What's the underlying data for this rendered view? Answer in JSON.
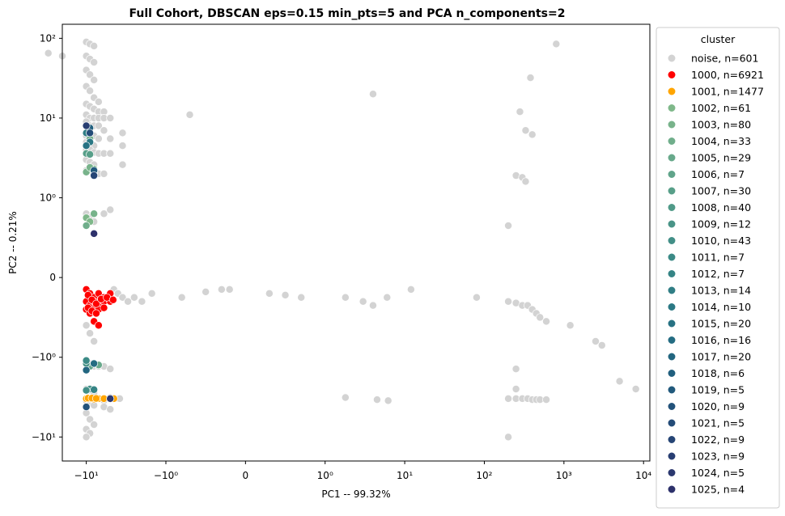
{
  "chart_data": {
    "type": "scatter",
    "title": "Full Cohort, DBSCAN eps=0.15 min_pts=5 and PCA n_components=2",
    "xlabel": "PC1 -- 99.32%",
    "ylabel": "PC2 -- 0.21%",
    "xscale": "symlog",
    "yscale": "symlog",
    "xlim": [
      -20,
      12000
    ],
    "ylim": [
      -20,
      150
    ],
    "x_ticks": [
      {
        "value": -10,
        "label": "−10¹"
      },
      {
        "value": -1,
        "label": "−10⁰"
      },
      {
        "value": 0,
        "label": "0"
      },
      {
        "value": 1,
        "label": "10⁰"
      },
      {
        "value": 10,
        "label": "10¹"
      },
      {
        "value": 100,
        "label": "10²"
      },
      {
        "value": 1000,
        "label": "10³"
      },
      {
        "value": 10000,
        "label": "10⁴"
      }
    ],
    "y_ticks": [
      {
        "value": 100,
        "label": "10²"
      },
      {
        "value": 10,
        "label": "10¹"
      },
      {
        "value": 1,
        "label": "10⁰"
      },
      {
        "value": 0,
        "label": "0"
      },
      {
        "value": -1,
        "label": "−10⁰"
      },
      {
        "value": -10,
        "label": "−10¹"
      }
    ],
    "legend": {
      "title": "cluster",
      "placement": "outside-right",
      "entries": [
        {
          "label": "noise, n=601",
          "color": "#d3d3d3"
        },
        {
          "label": "1000, n=6921",
          "color": "#ff0000"
        },
        {
          "label": "1001, n=1477",
          "color": "#ffa500"
        },
        {
          "label": "1002, n=61",
          "color": "#7fb88a"
        },
        {
          "label": "1003, n=80",
          "color": "#78b38b"
        },
        {
          "label": "1004, n=33",
          "color": "#70ae8b"
        },
        {
          "label": "1005, n=29",
          "color": "#68a98b"
        },
        {
          "label": "1006, n=7",
          "color": "#60a48a"
        },
        {
          "label": "1007, n=30",
          "color": "#589f89"
        },
        {
          "label": "1008, n=40",
          "color": "#509a88"
        },
        {
          "label": "1009, n=12",
          "color": "#499487"
        },
        {
          "label": "1010, n=43",
          "color": "#428f87"
        },
        {
          "label": "1011, n=7",
          "color": "#3b8a86"
        },
        {
          "label": "1012, n=7",
          "color": "#358485"
        },
        {
          "label": "1013, n=14",
          "color": "#307e85"
        },
        {
          "label": "1014, n=10",
          "color": "#2b7884"
        },
        {
          "label": "1015, n=20",
          "color": "#277283"
        },
        {
          "label": "1016, n=16",
          "color": "#246c82"
        },
        {
          "label": "1017, n=20",
          "color": "#226680"
        },
        {
          "label": "1018, n=6",
          "color": "#215f7e"
        },
        {
          "label": "1019, n=5",
          "color": "#21597c"
        },
        {
          "label": "1020, n=9",
          "color": "#22527a"
        },
        {
          "label": "1021, n=5",
          "color": "#244c78"
        },
        {
          "label": "1022, n=9",
          "color": "#264575"
        },
        {
          "label": "1023, n=9",
          "color": "#283e72"
        },
        {
          "label": "1024, n=5",
          "color": "#2b386f"
        },
        {
          "label": "1025, n=4",
          "color": "#2d316b"
        }
      ]
    },
    "series": [
      {
        "cluster": "noise",
        "color": "#d3d3d3",
        "points": [
          [
            -10,
            90
          ],
          [
            -9,
            85
          ],
          [
            -8,
            80
          ],
          [
            -10,
            60
          ],
          [
            -9,
            55
          ],
          [
            -8,
            50
          ],
          [
            -10,
            40
          ],
          [
            -9,
            35
          ],
          [
            -8,
            30
          ],
          [
            -10,
            25
          ],
          [
            -9,
            22
          ],
          [
            -8,
            18
          ],
          [
            -7,
            16
          ],
          [
            -10,
            15
          ],
          [
            -9,
            14
          ],
          [
            -8,
            13
          ],
          [
            -7,
            12
          ],
          [
            -6,
            12
          ],
          [
            -10,
            11
          ],
          [
            -9,
            10
          ],
          [
            -8,
            10
          ],
          [
            -7,
            10
          ],
          [
            -6,
            10
          ],
          [
            -5,
            10
          ],
          [
            -10,
            9
          ],
          [
            -9,
            8
          ],
          [
            -8,
            8
          ],
          [
            -7,
            8
          ],
          [
            -6,
            7
          ],
          [
            -10,
            6
          ],
          [
            -9,
            6
          ],
          [
            -8,
            6
          ],
          [
            -7,
            5.5
          ],
          [
            -5,
            5.5
          ],
          [
            -3.5,
            6.5
          ],
          [
            -10,
            5
          ],
          [
            -9,
            5
          ],
          [
            -8,
            4.5
          ],
          [
            -3.5,
            4.5
          ],
          [
            -10,
            4
          ],
          [
            -9,
            4
          ],
          [
            -8,
            3.7
          ],
          [
            -7,
            3.6
          ],
          [
            -6,
            3.6
          ],
          [
            -5,
            3.6
          ],
          [
            -10,
            3
          ],
          [
            -9,
            2.8
          ],
          [
            -8,
            2.6
          ],
          [
            -3.5,
            2.6
          ],
          [
            -10,
            2.2
          ],
          [
            -9,
            2.2
          ],
          [
            -8,
            2
          ],
          [
            -7,
            2
          ],
          [
            -6,
            2
          ],
          [
            -10,
            0.8
          ],
          [
            -9,
            0.75
          ],
          [
            -8,
            0.7
          ],
          [
            -6,
            0.8
          ],
          [
            -5,
            0.85
          ],
          [
            -4.5,
            -0.15
          ],
          [
            -4,
            -0.2
          ],
          [
            -3.5,
            -0.25
          ],
          [
            -3,
            -0.3
          ],
          [
            -2.5,
            -0.25
          ],
          [
            -2,
            -0.3
          ],
          [
            -1.5,
            -0.2
          ],
          [
            -0.8,
            -0.25
          ],
          [
            -0.5,
            -0.18
          ],
          [
            -0.3,
            -0.15
          ],
          [
            -0.2,
            -0.15
          ],
          [
            0.3,
            -0.2
          ],
          [
            0.5,
            -0.22
          ],
          [
            0.7,
            -0.25
          ],
          [
            1.8,
            -0.25
          ],
          [
            3,
            -0.3
          ],
          [
            4,
            -0.35
          ],
          [
            6,
            -0.25
          ],
          [
            12,
            -0.15
          ],
          [
            80,
            -0.25
          ],
          [
            200,
            -0.3
          ],
          [
            250,
            -0.32
          ],
          [
            300,
            -0.35
          ],
          [
            350,
            -0.35
          ],
          [
            400,
            -0.4
          ],
          [
            450,
            -0.45
          ],
          [
            500,
            -0.5
          ],
          [
            600,
            -0.55
          ],
          [
            1200,
            -0.6
          ],
          [
            2500,
            -0.8
          ],
          [
            3000,
            -0.85
          ],
          [
            -10,
            -0.6
          ],
          [
            -9,
            -0.7
          ],
          [
            -8,
            -0.8
          ],
          [
            -10,
            -1.1
          ],
          [
            -9,
            -1.2
          ],
          [
            -8,
            -1.3
          ],
          [
            -7,
            -1.3
          ],
          [
            -6,
            -1.3
          ],
          [
            -5,
            -1.4
          ],
          [
            -10,
            -2.5
          ],
          [
            -9,
            -2.6
          ],
          [
            -8,
            -2.8
          ],
          [
            -6,
            -3.5
          ],
          [
            -5,
            -3.2
          ],
          [
            -4,
            -3.3
          ],
          [
            -3.8,
            -3.3
          ],
          [
            -10,
            -3.5
          ],
          [
            -9,
            -3.7
          ],
          [
            -8,
            -4
          ],
          [
            -6,
            -4.2
          ],
          [
            -5,
            -4.5
          ],
          [
            -10,
            -5
          ],
          [
            -9,
            -6
          ],
          [
            -8,
            -7
          ],
          [
            -10,
            -8
          ],
          [
            -9,
            -9
          ],
          [
            -10,
            -10
          ],
          [
            1.8,
            -3.2
          ],
          [
            4.5,
            -3.4
          ],
          [
            6.2,
            -3.5
          ],
          [
            200,
            -3.3
          ],
          [
            250,
            -3.3
          ],
          [
            300,
            -3.3
          ],
          [
            350,
            -3.3
          ],
          [
            400,
            -3.4
          ],
          [
            450,
            -3.4
          ],
          [
            500,
            -3.4
          ],
          [
            600,
            -3.4
          ],
          [
            250,
            -2.5
          ],
          [
            250,
            -1.4
          ],
          [
            5000,
            -2
          ],
          [
            8000,
            -2.5
          ],
          [
            200,
            -10
          ],
          [
            200,
            0.65
          ],
          [
            250,
            1.9
          ],
          [
            300,
            1.8
          ],
          [
            330,
            1.6
          ],
          [
            280,
            12
          ],
          [
            330,
            7
          ],
          [
            400,
            6.2
          ],
          [
            380,
            32
          ],
          [
            800,
            85
          ],
          [
            4,
            20
          ],
          [
            -30,
            65
          ],
          [
            -0.7,
            11
          ],
          [
            -20,
            60
          ]
        ]
      },
      {
        "cluster": "1000",
        "color": "#ff0000",
        "points": [
          [
            -10,
            -0.15
          ],
          [
            -9,
            -0.2
          ],
          [
            -8,
            -0.25
          ],
          [
            -7,
            -0.2
          ],
          [
            -6,
            -0.25
          ],
          [
            -5,
            -0.2
          ],
          [
            -10,
            -0.3
          ],
          [
            -9,
            -0.35
          ],
          [
            -8,
            -0.3
          ],
          [
            -7,
            -0.35
          ],
          [
            -6,
            -0.3
          ],
          [
            -5,
            -0.3
          ],
          [
            -10,
            -0.4
          ],
          [
            -9,
            -0.45
          ],
          [
            -8,
            -0.4
          ],
          [
            -7,
            -0.4
          ],
          [
            -6,
            -0.38
          ],
          [
            -9.5,
            -0.22
          ],
          [
            -8.5,
            -0.28
          ],
          [
            -7.5,
            -0.33
          ],
          [
            -6.5,
            -0.27
          ],
          [
            -5.5,
            -0.25
          ],
          [
            -9.5,
            -0.38
          ],
          [
            -8.5,
            -0.42
          ],
          [
            -7.5,
            -0.45
          ],
          [
            -8,
            -0.55
          ],
          [
            -7,
            -0.6
          ],
          [
            -4.6,
            -0.28
          ]
        ]
      },
      {
        "cluster": "1001",
        "color": "#ffa500",
        "points": [
          [
            -10,
            -3.3
          ],
          [
            -9,
            -3.3
          ],
          [
            -8,
            -3.35
          ],
          [
            -7,
            -3.3
          ],
          [
            -6,
            -3.3
          ],
          [
            -5,
            -3.35
          ],
          [
            -4.5,
            -3.3
          ],
          [
            -9.5,
            -3.25
          ],
          [
            -8.5,
            -3.25
          ],
          [
            -7.5,
            -3.28
          ]
        ]
      },
      {
        "cluster": "1002",
        "color": "#7fb88a",
        "points": [
          [
            -9,
            2.2
          ],
          [
            -8,
            2.3
          ],
          [
            -10,
            0.75
          ],
          [
            -9,
            0.7
          ]
        ]
      },
      {
        "cluster": "1003",
        "color": "#78b38b",
        "points": [
          [
            -10,
            2.1
          ],
          [
            -9,
            2.4
          ],
          [
            -8,
            0.8
          ]
        ]
      },
      {
        "cluster": "1004",
        "color": "#70ae8b",
        "points": [
          [
            -9,
            5.5
          ],
          [
            -10,
            0.65
          ]
        ]
      },
      {
        "cluster": "1005",
        "color": "#68a98b",
        "points": [
          [
            -8,
            2
          ],
          [
            -7,
            -1.25
          ]
        ]
      },
      {
        "cluster": "1006",
        "color": "#60a48a",
        "points": [
          [
            -9,
            -1.3
          ]
        ]
      },
      {
        "cluster": "1007",
        "color": "#589f89",
        "points": [
          [
            -10,
            3.6
          ],
          [
            -9,
            3.5
          ]
        ]
      },
      {
        "cluster": "1008",
        "color": "#509a88",
        "points": [
          [
            -8,
            2.1
          ]
        ]
      },
      {
        "cluster": "1009",
        "color": "#499487",
        "points": [
          [
            -10,
            -1.2
          ]
        ]
      },
      {
        "cluster": "1010",
        "color": "#428f87",
        "points": [
          [
            -9,
            -2.5
          ],
          [
            -10,
            -2.6
          ]
        ]
      },
      {
        "cluster": "1011",
        "color": "#3b8a86",
        "points": [
          [
            -10,
            -1.1
          ]
        ]
      },
      {
        "cluster": "1012",
        "color": "#358485",
        "points": [
          [
            -8,
            -2.55
          ]
        ]
      },
      {
        "cluster": "1013",
        "color": "#307e85",
        "points": [
          [
            -10,
            6.5
          ]
        ]
      },
      {
        "cluster": "1014",
        "color": "#2b7884",
        "points": [
          [
            -9,
            5
          ]
        ]
      },
      {
        "cluster": "1015",
        "color": "#277283",
        "points": [
          [
            -10,
            4.5
          ]
        ]
      },
      {
        "cluster": "1016",
        "color": "#246c82",
        "points": [
          [
            -8,
            -1.2
          ]
        ]
      },
      {
        "cluster": "1017",
        "color": "#226680",
        "points": [
          [
            -10,
            -1.45
          ]
        ]
      },
      {
        "cluster": "1018",
        "color": "#215f7e",
        "points": [
          [
            -9,
            7.5
          ]
        ]
      },
      {
        "cluster": "1019",
        "color": "#21597c",
        "points": [
          [
            -8,
            2.2
          ]
        ]
      },
      {
        "cluster": "1020",
        "color": "#22527a",
        "points": [
          [
            -10,
            -4.2
          ]
        ]
      },
      {
        "cluster": "1021",
        "color": "#244c78",
        "points": [
          [
            -9,
            6.5
          ]
        ]
      },
      {
        "cluster": "1022",
        "color": "#264575",
        "points": [
          [
            -8,
            1.9
          ]
        ]
      },
      {
        "cluster": "1023",
        "color": "#283e72",
        "points": [
          [
            -10,
            8
          ]
        ]
      },
      {
        "cluster": "1024",
        "color": "#2b386f",
        "points": [
          [
            -5,
            -3.3
          ]
        ]
      },
      {
        "cluster": "1025",
        "color": "#2d316b",
        "points": [
          [
            -8,
            0.55
          ]
        ]
      }
    ]
  }
}
